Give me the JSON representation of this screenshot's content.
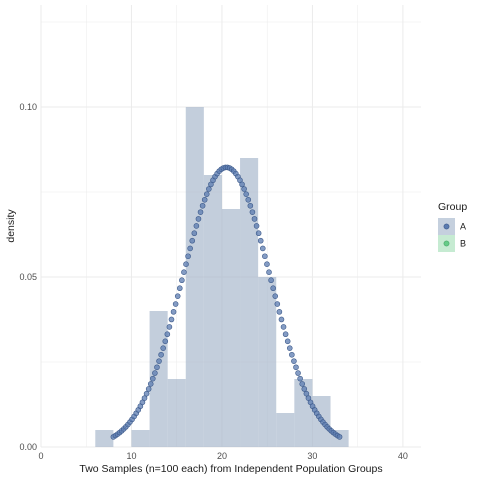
{
  "chart_data": {
    "type": "histogram+density",
    "xlabel": "Two Samples (n=100 each) from Independent Population Groups",
    "ylabel": "density",
    "xlim": [
      0,
      42
    ],
    "ylim": [
      0,
      0.13
    ],
    "x_ticks": [
      0,
      10,
      20,
      30,
      40
    ],
    "y_ticks": [
      0.0,
      0.05,
      0.1
    ],
    "y_tick_labels": [
      "0.00",
      "0.05",
      "0.10"
    ],
    "grid": true,
    "legend": {
      "title": "Group",
      "placement": "right",
      "entries": [
        {
          "label": "A",
          "color": "#5b7bb0"
        },
        {
          "label": "B",
          "color": "#66cc88"
        }
      ]
    },
    "histogram": {
      "series": "A",
      "binwidth": 2,
      "bins": [
        {
          "x0": 6,
          "x1": 8,
          "density": 0.005
        },
        {
          "x0": 8,
          "x1": 10,
          "density": 0.0
        },
        {
          "x0": 10,
          "x1": 12,
          "density": 0.005
        },
        {
          "x0": 12,
          "x1": 14,
          "density": 0.04
        },
        {
          "x0": 14,
          "x1": 16,
          "density": 0.02
        },
        {
          "x0": 16,
          "x1": 18,
          "density": 0.1
        },
        {
          "x0": 18,
          "x1": 20,
          "density": 0.08
        },
        {
          "x0": 20,
          "x1": 22,
          "density": 0.07
        },
        {
          "x0": 22,
          "x1": 24,
          "density": 0.085
        },
        {
          "x0": 24,
          "x1": 26,
          "density": 0.05
        },
        {
          "x0": 26,
          "x1": 28,
          "density": 0.01
        },
        {
          "x0": 28,
          "x1": 30,
          "density": 0.02
        },
        {
          "x0": 30,
          "x1": 32,
          "density": 0.015
        },
        {
          "x0": 32,
          "x1": 34,
          "density": 0.005
        }
      ]
    },
    "density_curve": {
      "series": "A",
      "distribution": "normal",
      "mean": 20.5,
      "sd": 4.85,
      "x_range": [
        8,
        33
      ],
      "points": 110
    }
  },
  "colors": {
    "bar_fill": "#a3b3c9",
    "point_fill": "#5b7bb0",
    "point_stroke": "#3d5a8a",
    "grid": "#ebebeb",
    "legend_key_a_bg": "#c5d0de",
    "legend_key_b_bg": "#c6ebd2",
    "legend_b_point": "#66cc88"
  }
}
